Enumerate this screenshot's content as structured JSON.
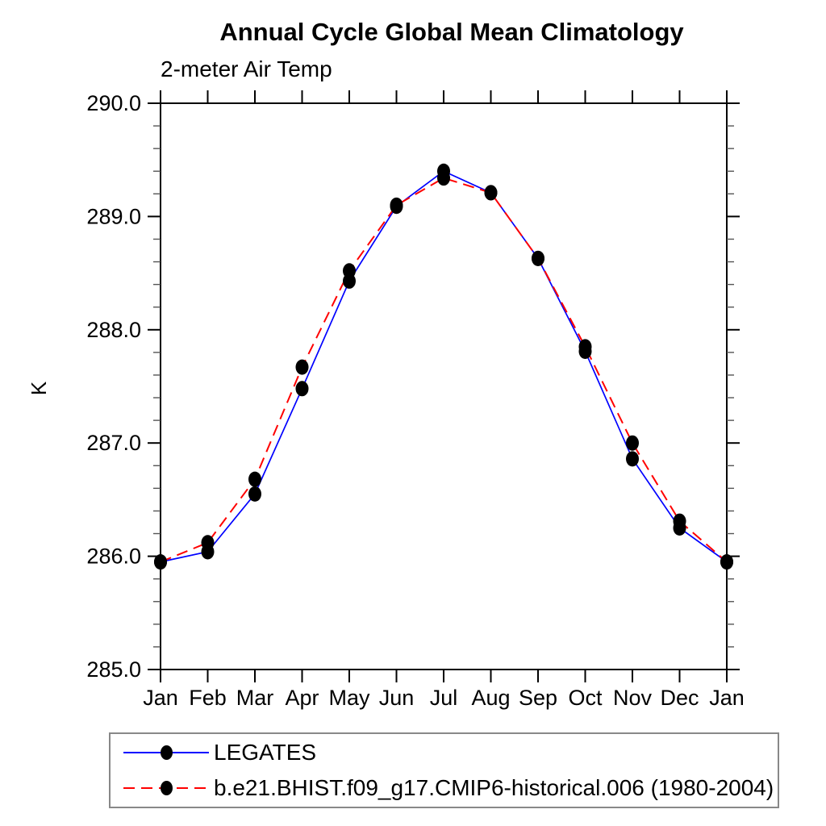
{
  "title": "Annual Cycle Global Mean Climatology",
  "subtitle": "2-meter Air Temp",
  "chart_data": {
    "type": "line",
    "categories": [
      "Jan",
      "Feb",
      "Mar",
      "Apr",
      "May",
      "Jun",
      "Jul",
      "Aug",
      "Sep",
      "Oct",
      "Nov",
      "Dec",
      "Jan"
    ],
    "xlabel": "",
    "ylabel": "K",
    "ylim": [
      285.0,
      290.0
    ],
    "ytick_major_step": 1.0,
    "ytick_minor_step": 0.2,
    "ytick_labels": [
      "285.0",
      "286.0",
      "287.0",
      "288.0",
      "289.0",
      "290.0"
    ],
    "grid": false,
    "legend_position": "bottom-left",
    "marker": "filled-circle",
    "marker_color": "#000000",
    "series": [
      {
        "name": "LEGATES",
        "color": "#0000ff",
        "line_style": "solid",
        "values": [
          285.95,
          286.04,
          286.55,
          287.48,
          288.43,
          289.09,
          289.4,
          289.21,
          288.63,
          287.81,
          286.86,
          286.25,
          285.95
        ]
      },
      {
        "name": "b.e21.BHIST.f09_g17.CMIP6-historical.006 (1980-2004)",
        "color": "#ff0000",
        "line_style": "dashed",
        "values": [
          285.95,
          286.12,
          286.68,
          287.67,
          288.52,
          289.1,
          289.34,
          289.21,
          288.63,
          287.85,
          287.0,
          286.31,
          285.95
        ]
      }
    ]
  }
}
